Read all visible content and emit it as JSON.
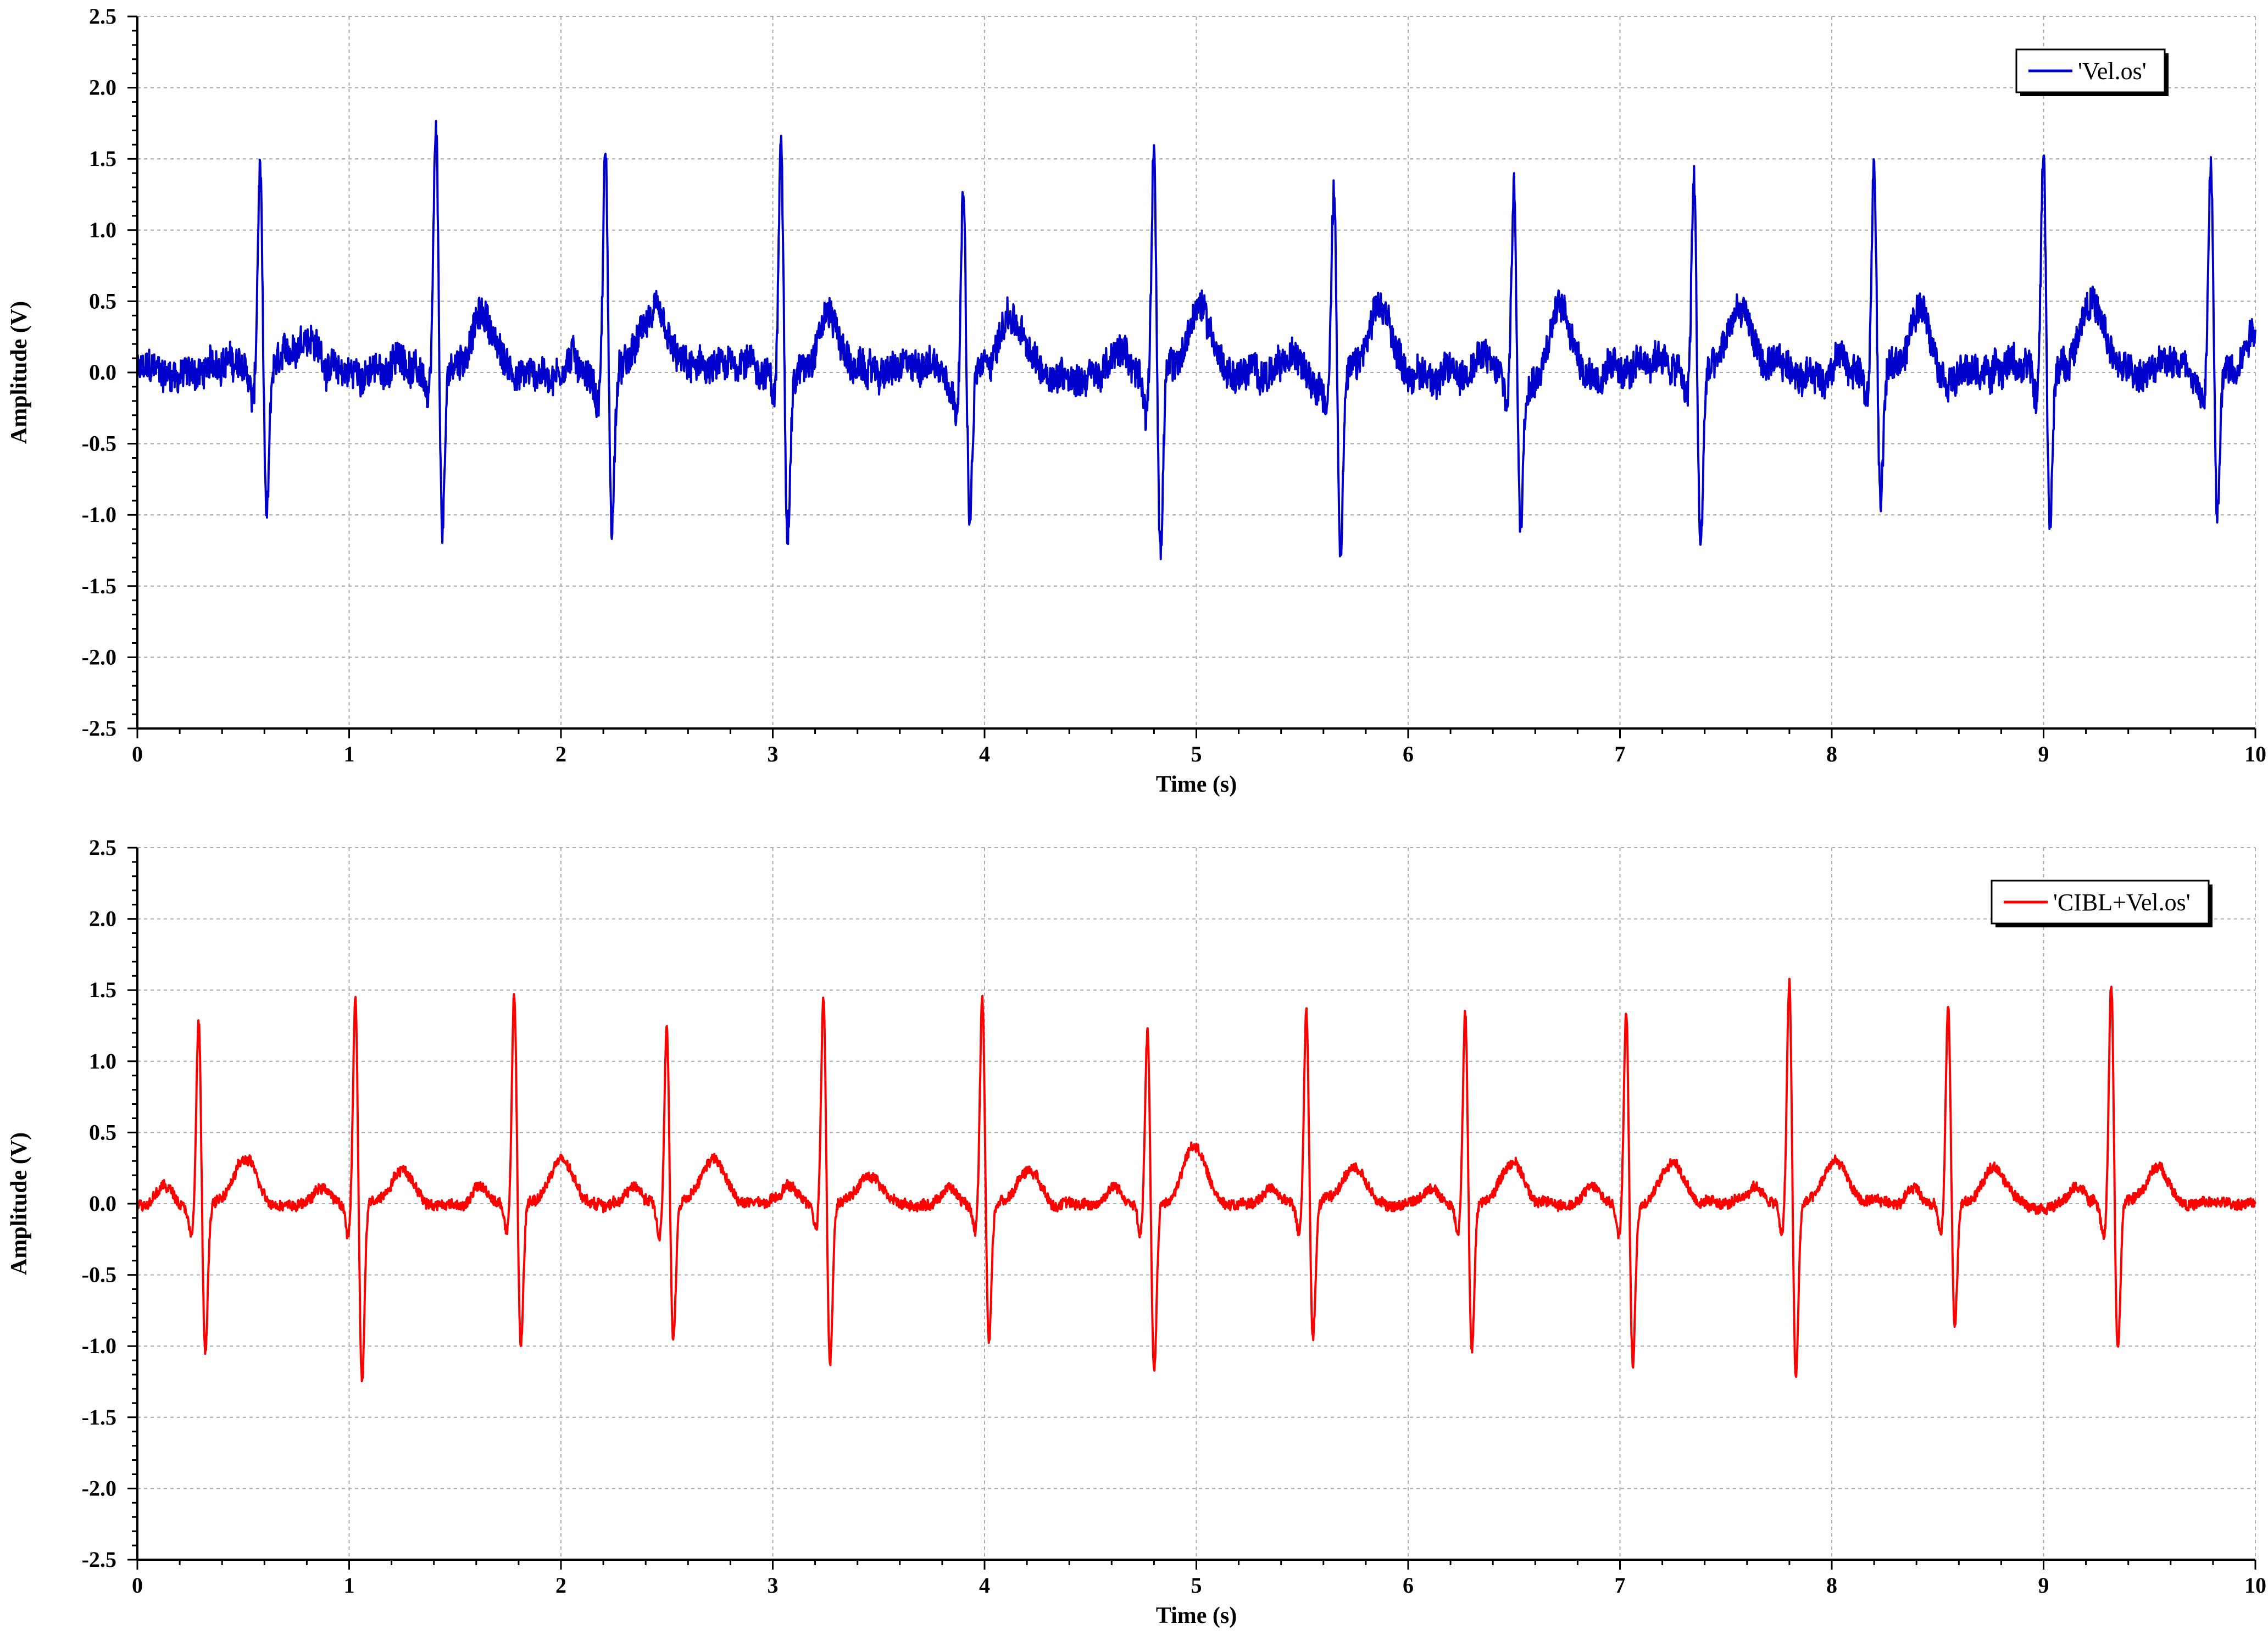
{
  "figure": {
    "panels": [
      {
        "xlabel": "Time (s)",
        "ylabel": "Amplitude (V)",
        "legend": "'Vel.os'",
        "color": "#0000cc",
        "legend_position": "top-right"
      },
      {
        "xlabel": "Time (s)",
        "ylabel": "Amplitude (V)",
        "legend": "'CIBL+Vel.os'",
        "color": "#ff0000",
        "legend_position": "top-right"
      }
    ]
  },
  "chart_data": [
    {
      "type": "line",
      "title": "",
      "xlabel": "Time (s)",
      "ylabel": "Amplitude (V)",
      "xlim": [
        0,
        10
      ],
      "ylim": [
        -2.5,
        2.5
      ],
      "xticks": [
        "0",
        "1",
        "2",
        "3",
        "4",
        "5",
        "6",
        "7",
        "8",
        "9",
        "10"
      ],
      "yticks": [
        "2.5",
        "2.0",
        "1.5",
        "1.0",
        "0.5",
        "0.0",
        "-0.5",
        "-1.0",
        "-1.5",
        "-2.0",
        "-2.5"
      ],
      "grid": true,
      "legend_position": "top-right",
      "series": [
        {
          "name": "'Vel.os'",
          "color": "#0000cc",
          "noise": 0.11,
          "beats": [
            {
              "t": 0.58,
              "r": 1.45,
              "s": -1.12,
              "tw": 0.3
            },
            {
              "t": 1.41,
              "r": 1.68,
              "s": -1.2,
              "tw": 0.4
            },
            {
              "t": 2.21,
              "r": 1.6,
              "s": -1.08,
              "tw": 0.4
            },
            {
              "t": 3.04,
              "r": 1.65,
              "s": -1.08,
              "tw": 0.45
            },
            {
              "t": 3.9,
              "r": 1.4,
              "s": -1.05,
              "tw": 0.4
            },
            {
              "t": 4.8,
              "r": 1.68,
              "s": -1.28,
              "tw": 0.45
            },
            {
              "t": 5.65,
              "r": 1.35,
              "s": -1.2,
              "tw": 0.4
            },
            {
              "t": 6.5,
              "r": 1.35,
              "s": -1.08,
              "tw": 0.45
            },
            {
              "t": 7.35,
              "r": 1.38,
              "s": -1.28,
              "tw": 0.45
            },
            {
              "t": 8.2,
              "r": 1.52,
              "s": -0.97,
              "tw": 0.45
            },
            {
              "t": 9.0,
              "r": 1.6,
              "s": -1.08,
              "tw": 0.55
            },
            {
              "t": 9.79,
              "r": 1.52,
              "s": -1.05,
              "tw": 0.4
            }
          ]
        }
      ]
    },
    {
      "type": "line",
      "title": "",
      "xlabel": "Time (s)",
      "ylabel": "Amplitude (V)",
      "xlim": [
        0,
        10
      ],
      "ylim": [
        -2.5,
        2.5
      ],
      "xticks": [
        "0",
        "1",
        "2",
        "3",
        "4",
        "5",
        "6",
        "7",
        "8",
        "9",
        "10"
      ],
      "yticks": [
        "2.5",
        "2.0",
        "1.5",
        "1.0",
        "0.5",
        "0.0",
        "-0.5",
        "-1.0",
        "-1.5",
        "-2.0",
        "-2.5"
      ],
      "grid": true,
      "legend_position": "top-right",
      "series": [
        {
          "name": "'CIBL+Vel.os'",
          "color": "#ff0000",
          "noise": 0.035,
          "beats": [
            {
              "t": 0.29,
              "r": 1.33,
              "s": -1.08,
              "tw": 0.3
            },
            {
              "t": 1.03,
              "r": 1.48,
              "s": -1.28,
              "tw": 0.25
            },
            {
              "t": 1.78,
              "r": 1.52,
              "s": -1.05,
              "tw": 0.3
            },
            {
              "t": 2.5,
              "r": 1.28,
              "s": -0.97,
              "tw": 0.3
            },
            {
              "t": 3.24,
              "r": 1.48,
              "s": -1.15,
              "tw": 0.2
            },
            {
              "t": 3.99,
              "r": 1.48,
              "s": -1.0,
              "tw": 0.25
            },
            {
              "t": 4.77,
              "r": 1.25,
              "s": -1.22,
              "tw": 0.4
            },
            {
              "t": 5.52,
              "r": 1.4,
              "s": -0.97,
              "tw": 0.25
            },
            {
              "t": 6.27,
              "r": 1.37,
              "s": -1.05,
              "tw": 0.3
            },
            {
              "t": 7.03,
              "r": 1.45,
              "s": -1.12,
              "tw": 0.3
            },
            {
              "t": 7.8,
              "r": 1.6,
              "s": -1.25,
              "tw": 0.3
            },
            {
              "t": 8.55,
              "r": 1.45,
              "s": -0.88,
              "tw": 0.25
            },
            {
              "t": 9.32,
              "r": 1.6,
              "s": -1.05,
              "tw": 0.25
            }
          ]
        }
      ]
    }
  ]
}
